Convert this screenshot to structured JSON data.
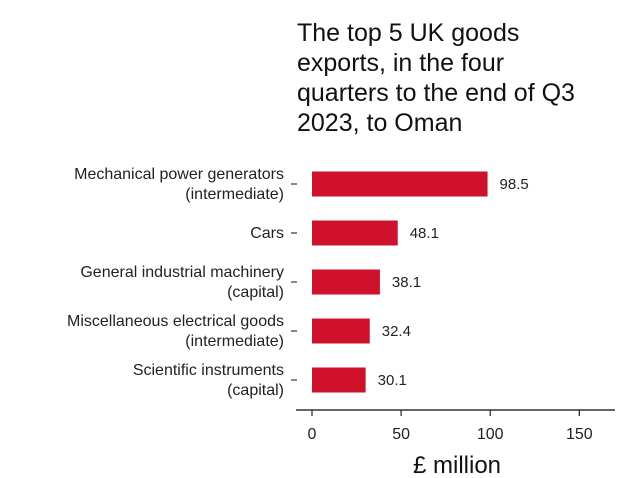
{
  "chart_data": {
    "type": "bar",
    "orientation": "horizontal",
    "title": "The top 5 UK goods\nexports, in the four\nquarters to the end of Q3\n2023, to Oman",
    "xlabel": "£ million",
    "ylabel": "",
    "categories": [
      [
        "Mechanical power generators",
        "(intermediate)"
      ],
      [
        "Cars"
      ],
      [
        "General industrial machinery",
        "(capital)"
      ],
      [
        "Miscellaneous electrical goods",
        "(intermediate)"
      ],
      [
        "Scientific instruments",
        "(capital)"
      ]
    ],
    "values": [
      98.5,
      48.1,
      38.1,
      32.4,
      30.1
    ],
    "data_labels": [
      "98.5",
      "48.1",
      "38.1",
      "32.4",
      "30.1"
    ],
    "xlim": [
      0,
      170
    ],
    "xticks": [
      0,
      50,
      100,
      150
    ],
    "xtick_labels": [
      "0",
      "50",
      "100",
      "150"
    ],
    "grid": false,
    "legend": "none",
    "bar_color": "#d0112b"
  }
}
